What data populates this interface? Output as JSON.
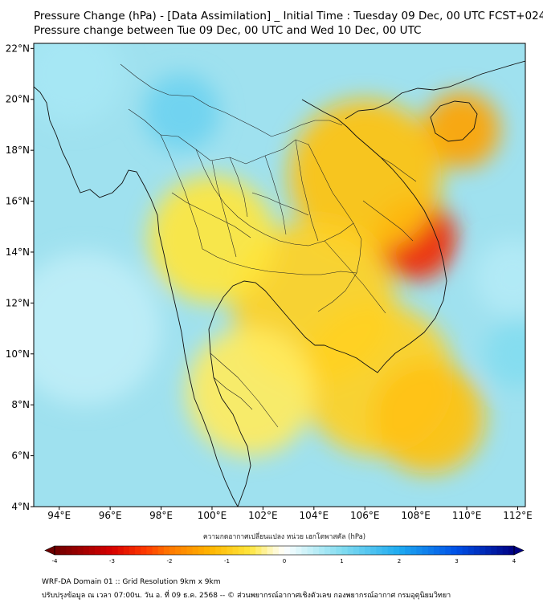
{
  "title_line1": "Pressure Change (hPa) - [Data Assimilation] _ Initial Time : Tuesday 09 Dec, 00 UTC FCST+024",
  "title_line2": "Pressure change between Tue 09 Dec, 00 UTC and Wed 10 Dec, 00 UTC",
  "map": {
    "lon_range": [
      93,
      112.3
    ],
    "lat_range": [
      4,
      22.2
    ],
    "lat_ticks": [
      {
        "value": 4,
        "label": "4°N"
      },
      {
        "value": 6,
        "label": "6°N"
      },
      {
        "value": 8,
        "label": "8°N"
      },
      {
        "value": 10,
        "label": "10°N"
      },
      {
        "value": 12,
        "label": "12°N"
      },
      {
        "value": 14,
        "label": "14°N"
      },
      {
        "value": 16,
        "label": "16°N"
      },
      {
        "value": 18,
        "label": "18°N"
      },
      {
        "value": 20,
        "label": "20°N"
      },
      {
        "value": 22,
        "label": "22°N"
      }
    ],
    "lon_ticks": [
      {
        "value": 94,
        "label": "94°E"
      },
      {
        "value": 96,
        "label": "96°E"
      },
      {
        "value": 98,
        "label": "98°E"
      },
      {
        "value": 100,
        "label": "100°E"
      },
      {
        "value": 102,
        "label": "102°E"
      },
      {
        "value": 104,
        "label": "104°E"
      },
      {
        "value": 106,
        "label": "106°E"
      },
      {
        "value": 108,
        "label": "108°E"
      },
      {
        "value": 110,
        "label": "110°E"
      },
      {
        "value": 112,
        "label": "112°E"
      }
    ],
    "field_blobs": [
      {
        "lon": 108.0,
        "lat": 14.5,
        "value": -2.6,
        "r": 1.6
      },
      {
        "lon": 109.8,
        "lat": 18.8,
        "value": -1.5,
        "r": 1.5
      },
      {
        "lon": 106.0,
        "lat": 17.0,
        "value": -1.1,
        "r": 3.0
      },
      {
        "lon": 104.0,
        "lat": 12.0,
        "value": -0.9,
        "r": 3.2
      },
      {
        "lon": 106.5,
        "lat": 9.0,
        "value": -0.9,
        "r": 3.0
      },
      {
        "lon": 108.5,
        "lat": 7.5,
        "value": -1.1,
        "r": 2.2
      },
      {
        "lon": 100.0,
        "lat": 14.5,
        "value": -0.6,
        "r": 2.5
      },
      {
        "lon": 101.5,
        "lat": 8.5,
        "value": -0.5,
        "r": 2.5
      },
      {
        "lon": 98.8,
        "lat": 19.5,
        "value": 1.2,
        "r": 1.5
      },
      {
        "lon": 94.5,
        "lat": 21.0,
        "value": 0.7,
        "r": 2.0
      },
      {
        "lon": 95.0,
        "lat": 11.0,
        "value": 0.5,
        "r": 3.0
      },
      {
        "lon": 112.0,
        "lat": 10.0,
        "value": 1.0,
        "r": 1.3
      },
      {
        "lon": 111.8,
        "lat": 13.0,
        "value": 0.6,
        "r": 1.5
      }
    ]
  },
  "colorbar": {
    "title": "ความกดอากาศเปลี่ยนแปลง หน่วย เฮกโตพาสคัล (hPa)",
    "min": -4,
    "max": 4,
    "tick_labels": [
      "-4",
      "-3",
      "-2",
      "-1",
      "0",
      "1",
      "2",
      "3",
      "4"
    ]
  },
  "footer_line1": "WRF-DA Domain 01 :: Grid Resolution 9km x 9km",
  "footer_line2": "ปรับปรุงข้อมูล ณ เวลา 07:00น. วัน อ. ที่ 09 ธ.ค. 2568 -- © ส่วนพยากรณ์อากาศเชิงตัวเลข กองพยากรณ์อากาศ กรมอุตุนิยมวิทยา"
}
